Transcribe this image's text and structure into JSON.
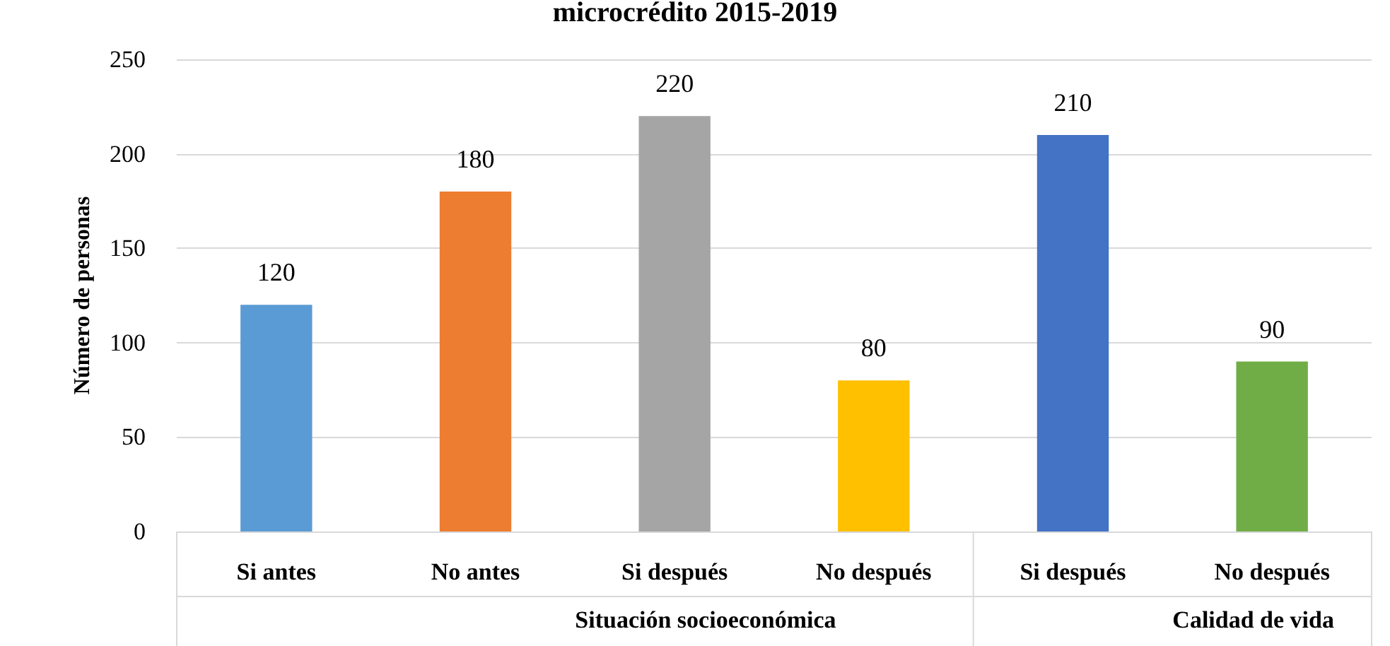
{
  "chart_data": {
    "type": "bar",
    "title": "microcrédito 2015-2019",
    "ylabel": "Número de personas",
    "categories": [
      "Si antes",
      "No antes",
      "Si después",
      "No después",
      "Si después",
      "No después"
    ],
    "values": [
      120,
      180,
      220,
      80,
      210,
      90
    ],
    "colors": [
      "#5b9bd5",
      "#ed7d31",
      "#a5a5a5",
      "#ffc000",
      "#4472c4",
      "#70ad47"
    ],
    "ylim": [
      0,
      250
    ],
    "yticks": [
      0,
      50,
      100,
      150,
      200,
      250
    ],
    "grid": "y",
    "data_labels": true,
    "annotations": [
      "Situación socioeconómica",
      "Calidad de vida"
    ]
  }
}
